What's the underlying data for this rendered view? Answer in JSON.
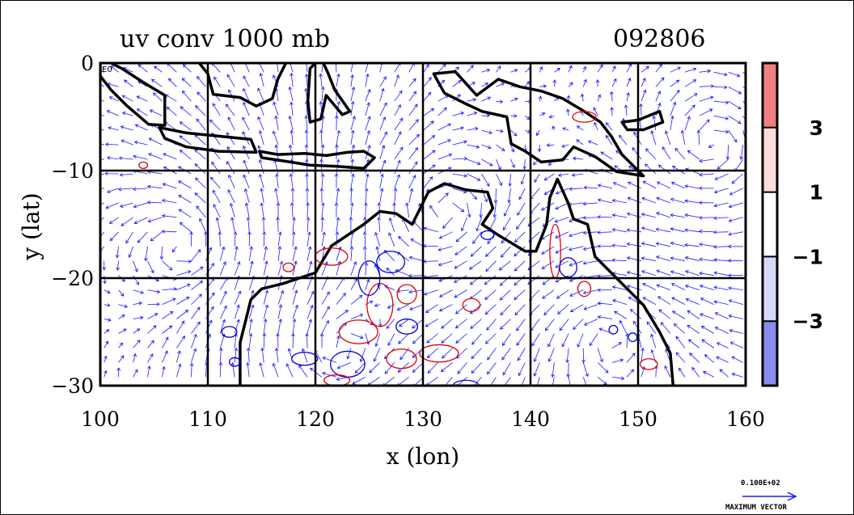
{
  "chart_data": {
    "type": "heatmap",
    "title": "uv conv 1000 mb",
    "date_label": "092806",
    "xlabel": "x (lon)",
    "ylabel": "y (lat)",
    "xlim": [
      100,
      160
    ],
    "ylim": [
      -30,
      0
    ],
    "x_ticks": [
      100,
      110,
      120,
      130,
      140,
      150,
      160
    ],
    "y_ticks": [
      0,
      -10,
      -20,
      -30
    ],
    "x_tick_labels": [
      "100",
      "110",
      "120",
      "130",
      "140",
      "150",
      "160"
    ],
    "y_tick_labels": [
      "0",
      "−10",
      "−20",
      "−30"
    ],
    "corner_label": "E0",
    "grid": true,
    "colorbar": {
      "levels": [
        {
          "label": "3",
          "value": 3
        },
        {
          "label": "1",
          "value": 1
        },
        {
          "label": "−1",
          "value": -1
        },
        {
          "label": "−3",
          "value": -3
        }
      ],
      "bands": [
        {
          "range": "above 3",
          "color": "#f08080"
        },
        {
          "range": "1 to 3",
          "color": "#fcdcdc"
        },
        {
          "range": "-1 to 1",
          "color": "#ffffff"
        },
        {
          "range": "-3 to -1",
          "color": "#d8d8f8"
        },
        {
          "range": "below -3",
          "color": "#8c8cee"
        }
      ]
    },
    "vector_reference": {
      "value_label": "0.100E+02",
      "caption": "MAXIMUM VECTOR"
    },
    "colors": {
      "vectors": "#1a1aff",
      "coastline": "#000000",
      "positive_contour": "#e00000",
      "negative_contour": "#0000dd"
    }
  }
}
